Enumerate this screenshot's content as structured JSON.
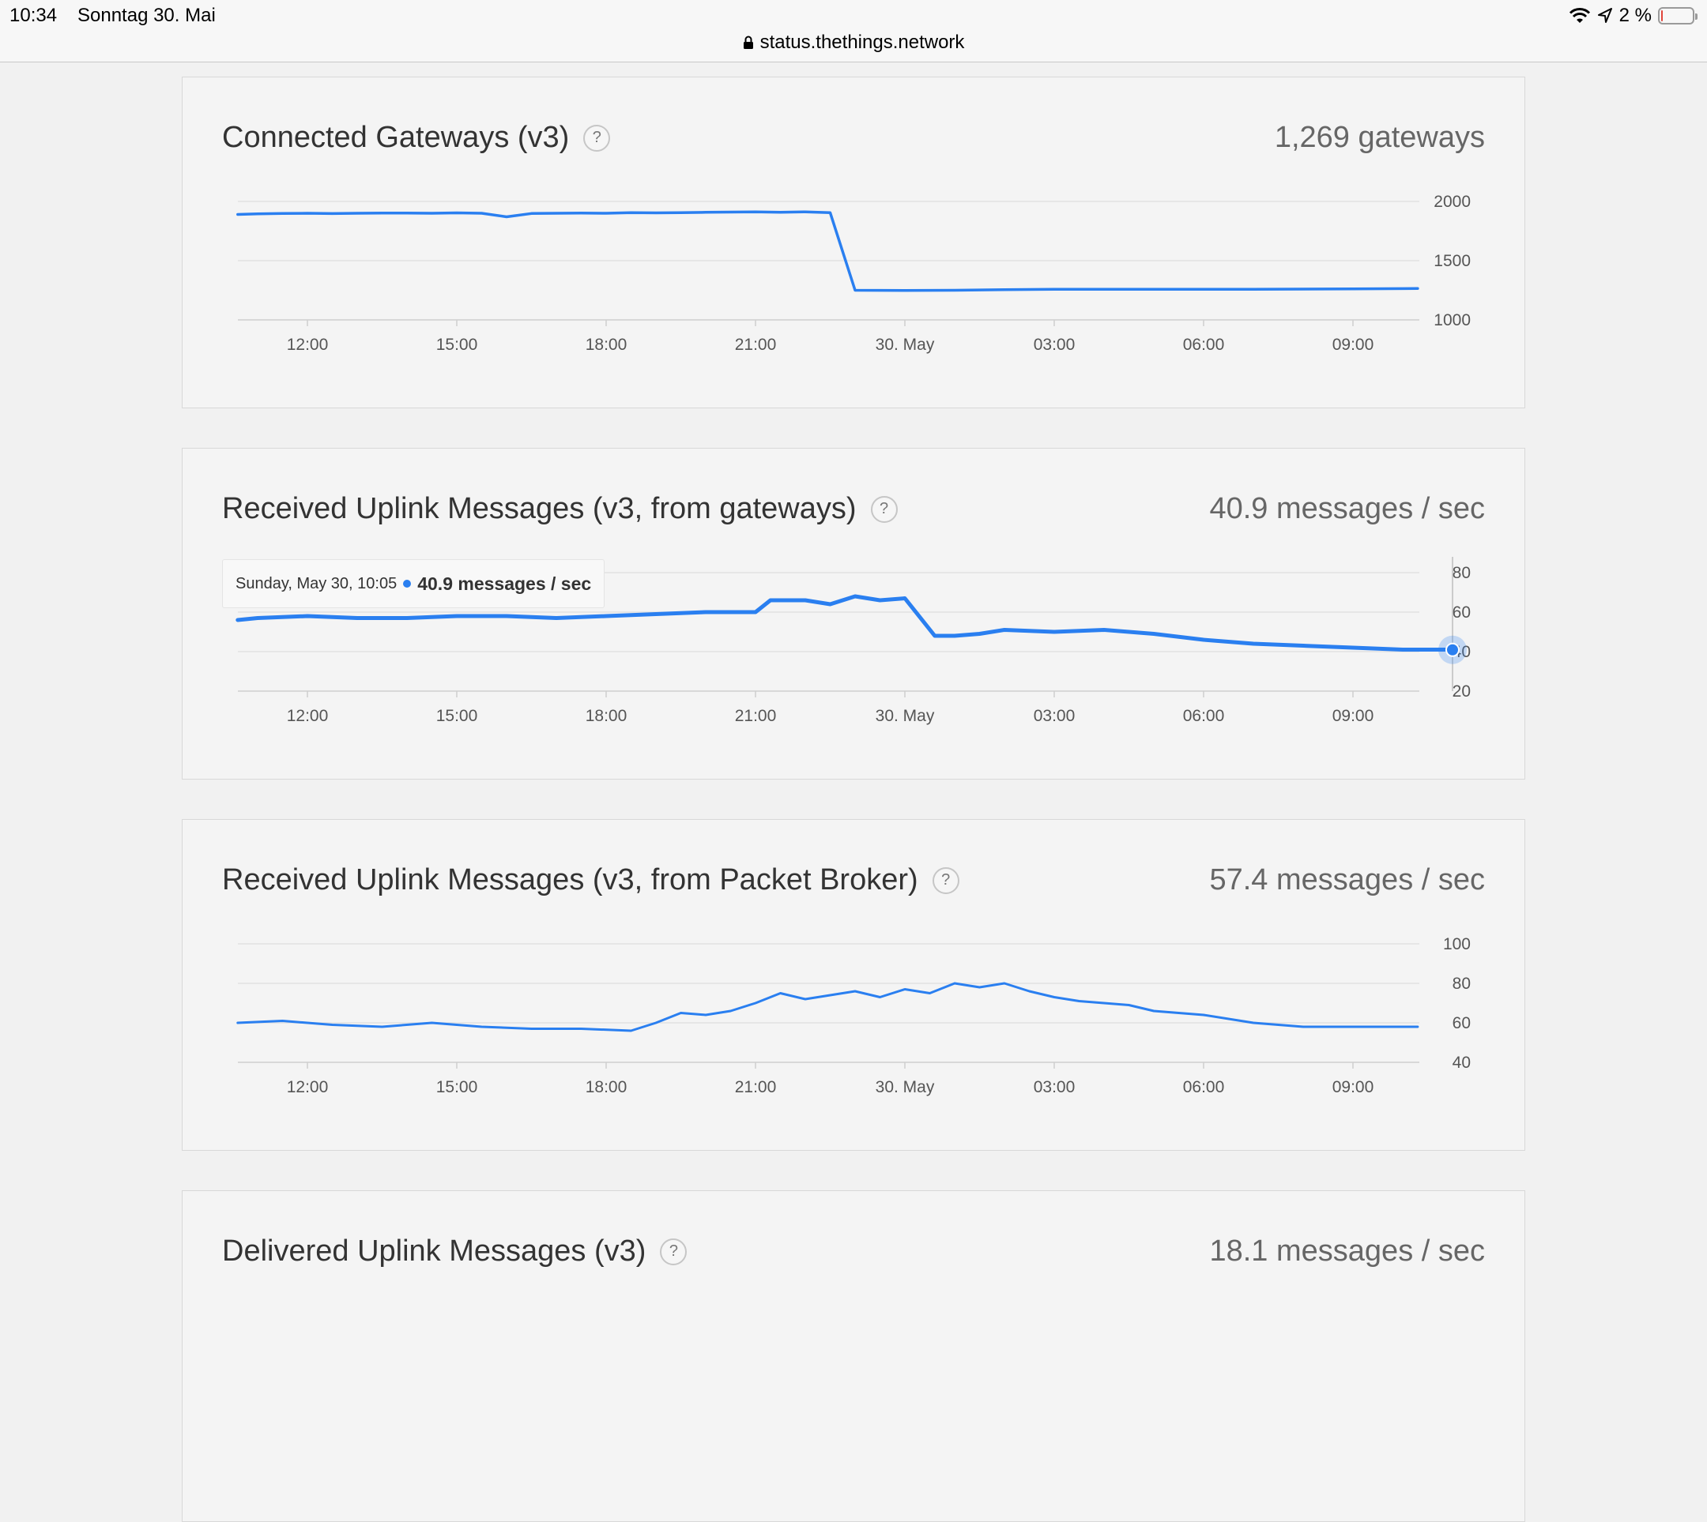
{
  "status_bar": {
    "time": "10:34",
    "date": "Sonntag 30. Mai",
    "battery": "2 %",
    "battery_level": 0.02,
    "url": "status.thethings.network"
  },
  "icons": [
    "lock-icon",
    "wifi-icon",
    "location-arrow-icon",
    "battery-icon",
    "help-icon"
  ],
  "colors": {
    "accent": "#2a7ff0",
    "background": "#f1f1f1",
    "card": "#f4f4f4"
  },
  "cards": [
    {
      "title": "Connected Gateways (v3)",
      "help": "?",
      "value": "1,269 gateways"
    },
    {
      "title": "Received Uplink Messages (v3, from gateways)",
      "help": "?",
      "value": "40.9 messages / sec",
      "tooltip": {
        "date": "Sunday, May 30, 10:05",
        "value": "40.9 messages / sec"
      }
    },
    {
      "title": "Received Uplink Messages (v3, from Packet Broker)",
      "help": "?",
      "value": "57.4 messages / sec"
    },
    {
      "title": "Delivered Uplink Messages (v3)",
      "help": "?",
      "value": "18.1 messages / sec"
    }
  ],
  "chart_data": [
    {
      "type": "line",
      "x_ticks": [
        "12:00",
        "15:00",
        "18:00",
        "21:00",
        "30. May",
        "03:00",
        "06:00",
        "09:00"
      ],
      "y_ticks": [
        1000,
        1500,
        2000
      ],
      "ylim": [
        1000,
        2000
      ],
      "x": [
        0,
        1,
        2,
        3,
        4,
        5,
        6,
        7,
        8,
        9,
        10,
        11,
        12,
        13,
        14,
        15,
        16,
        17,
        18,
        19,
        20,
        21,
        22,
        23,
        24,
        25,
        26,
        27,
        28,
        29,
        30,
        31,
        32,
        33
      ],
      "x_hour_offsets_from_12": [
        -1.4,
        -1,
        -0.5,
        0,
        0.5,
        1,
        1.5,
        2,
        2.5,
        3,
        3.5,
        4,
        4.5,
        5,
        5.5,
        6,
        6.5,
        7,
        7.5,
        8,
        8.5,
        9,
        9.5,
        10,
        10.5,
        11,
        12,
        13,
        14,
        15,
        17,
        19,
        21,
        22.3
      ],
      "series": [
        {
          "values": [
            1890,
            1895,
            1898,
            1900,
            1897,
            1900,
            1902,
            1902,
            1900,
            1903,
            1900,
            1870,
            1898,
            1900,
            1902,
            1900,
            1905,
            1903,
            1905,
            1908,
            1910,
            1912,
            1908,
            1912,
            1905,
            1250,
            1248,
            1250,
            1255,
            1258,
            1258,
            1258,
            1262,
            1265
          ]
        }
      ]
    },
    {
      "type": "line",
      "x_ticks": [
        "12:00",
        "15:00",
        "18:00",
        "21:00",
        "30. May",
        "03:00",
        "06:00",
        "09:00"
      ],
      "y_ticks": [
        20,
        40,
        60,
        80
      ],
      "ylim": [
        20,
        80
      ],
      "x_hour_offsets_from_12": [
        -1.4,
        -1,
        0,
        1,
        2,
        3,
        4,
        5,
        6,
        7,
        8,
        9,
        9.3,
        10,
        10.5,
        11,
        11.5,
        12,
        12.6,
        13,
        13.5,
        14,
        15,
        16,
        17,
        18,
        19,
        20,
        21,
        22,
        22.5,
        23.0
      ],
      "series": [
        {
          "values": [
            56,
            57,
            58,
            57,
            57,
            58,
            58,
            57,
            58,
            59,
            60,
            60,
            66,
            66,
            64,
            68,
            66,
            67,
            48,
            48,
            49,
            51,
            50,
            51,
            49,
            46,
            44,
            43,
            42,
            41,
            41,
            41
          ]
        }
      ],
      "highlight": {
        "label": "Sunday, May 30, 10:05",
        "value": 40.9
      }
    },
    {
      "type": "line",
      "x_ticks": [
        "12:00",
        "15:00",
        "18:00",
        "21:00",
        "30. May",
        "03:00",
        "06:00",
        "09:00"
      ],
      "y_ticks": [
        40,
        60,
        80,
        100
      ],
      "ylim": [
        40,
        100
      ],
      "x_hour_offsets_from_12": [
        -1.4,
        -0.5,
        0.5,
        1.5,
        2.5,
        3.5,
        4.5,
        5.5,
        6.5,
        7,
        7.5,
        8,
        8.5,
        9,
        9.5,
        10,
        10.5,
        11,
        11.5,
        12,
        12.5,
        13,
        13.5,
        14,
        14.5,
        15,
        15.5,
        16,
        16.5,
        17,
        18,
        19,
        20,
        21,
        22,
        22.3
      ],
      "series": [
        {
          "values": [
            60,
            61,
            59,
            58,
            60,
            58,
            57,
            57,
            56,
            60,
            65,
            64,
            66,
            70,
            75,
            72,
            74,
            76,
            73,
            77,
            75,
            80,
            78,
            80,
            76,
            73,
            71,
            70,
            69,
            66,
            64,
            60,
            58,
            58,
            58,
            58
          ]
        }
      ]
    }
  ]
}
